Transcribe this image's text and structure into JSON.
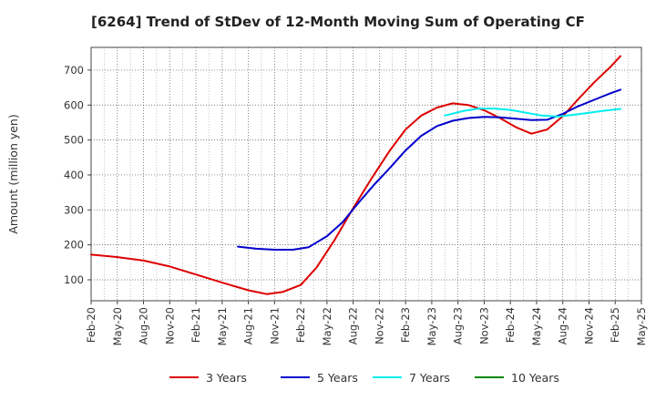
{
  "chart_data": {
    "type": "line",
    "title": "[6264]  Trend of StDev of 12-Month Moving Sum of Operating CF",
    "xlabel": "",
    "ylabel": "Amount (million yen)",
    "ylim": [
      40,
      765
    ],
    "yticks": [
      100,
      200,
      300,
      400,
      500,
      600,
      700
    ],
    "xticks": [
      "Feb-20",
      "May-20",
      "Aug-20",
      "Nov-20",
      "Feb-21",
      "May-21",
      "Aug-21",
      "Nov-21",
      "Feb-22",
      "May-22",
      "Aug-22",
      "Nov-22",
      "Feb-23",
      "May-23",
      "Aug-23",
      "Nov-23",
      "Feb-24",
      "May-24",
      "Aug-24",
      "Nov-24",
      "Feb-25",
      "May-25"
    ],
    "grid": true,
    "legend_position": "bottom",
    "series": [
      {
        "name": "3 Years",
        "color": "#dd0000",
        "points": [
          [
            0,
            172
          ],
          [
            1,
            165
          ],
          [
            2,
            155
          ],
          [
            3,
            138
          ],
          [
            4,
            115
          ],
          [
            5,
            92
          ],
          [
            6,
            70
          ],
          [
            6.7,
            59
          ],
          [
            7.3,
            65
          ],
          [
            8,
            85
          ],
          [
            8.6,
            135
          ],
          [
            9.3,
            215
          ],
          [
            10,
            305
          ],
          [
            10.7,
            390
          ],
          [
            11.4,
            470
          ],
          [
            12,
            530
          ],
          [
            12.6,
            570
          ],
          [
            13.2,
            593
          ],
          [
            13.8,
            605
          ],
          [
            14.4,
            600
          ],
          [
            15,
            585
          ],
          [
            15.6,
            563
          ],
          [
            16.2,
            537
          ],
          [
            16.8,
            518
          ],
          [
            17.4,
            530
          ],
          [
            18,
            568
          ],
          [
            18.6,
            618
          ],
          [
            19.2,
            665
          ],
          [
            19.8,
            708
          ],
          [
            20.2,
            740
          ]
        ]
      },
      {
        "name": "5 Years",
        "color": "#0000cc",
        "points": [
          [
            5.6,
            195
          ],
          [
            6.3,
            189
          ],
          [
            7,
            186
          ],
          [
            7.7,
            186
          ],
          [
            8.3,
            193
          ],
          [
            9,
            225
          ],
          [
            9.6,
            265
          ],
          [
            10.2,
            320
          ],
          [
            10.8,
            372
          ],
          [
            11.4,
            420
          ],
          [
            12,
            470
          ],
          [
            12.6,
            512
          ],
          [
            13.2,
            540
          ],
          [
            13.8,
            555
          ],
          [
            14.4,
            563
          ],
          [
            15,
            566
          ],
          [
            15.6,
            565
          ],
          [
            16.2,
            561
          ],
          [
            16.8,
            557
          ],
          [
            17.4,
            558
          ],
          [
            18,
            575
          ],
          [
            18.6,
            597
          ],
          [
            19.2,
            615
          ],
          [
            19.8,
            633
          ],
          [
            20.2,
            644
          ]
        ]
      },
      {
        "name": "7 Years",
        "color": "#00eeee",
        "points": [
          [
            13.5,
            570
          ],
          [
            14.2,
            583
          ],
          [
            14.8,
            590
          ],
          [
            15.4,
            590
          ],
          [
            16,
            586
          ],
          [
            16.6,
            578
          ],
          [
            17.2,
            570
          ],
          [
            17.8,
            567
          ],
          [
            18.4,
            572
          ],
          [
            19,
            578
          ],
          [
            19.6,
            584
          ],
          [
            20.2,
            589
          ]
        ]
      },
      {
        "name": "10 Years",
        "color": "#008800",
        "points": []
      }
    ]
  }
}
